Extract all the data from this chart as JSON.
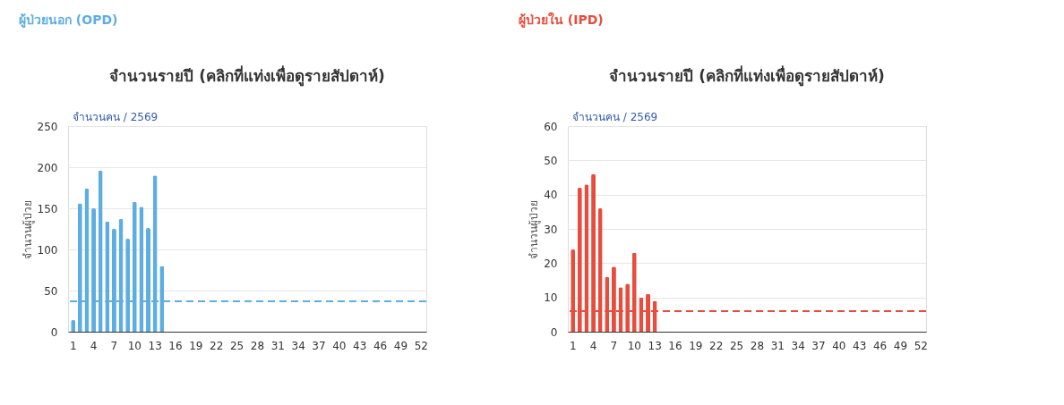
{
  "chart_data": [
    {
      "type": "bar",
      "title": "จำนวนรายปี (คลิกที่แท่งเพื่อดูรายสัปดาห์)",
      "ylabel": "จำนวนผู้ป่วย",
      "annotations": [
        "ผู้ป่วยนอก (OPD)",
        "จำนวนคน / 2569"
      ],
      "categories": [
        "1",
        null,
        null,
        "4",
        null,
        null,
        "7",
        null,
        null,
        "10",
        null,
        null,
        "13",
        null,
        null,
        "16",
        null,
        null,
        "19",
        null,
        null,
        "22",
        null,
        null,
        "25",
        null,
        null,
        "28",
        null,
        null,
        "31",
        null,
        null,
        "34",
        null,
        null,
        "37",
        null,
        null,
        "40",
        null,
        null,
        "43",
        null,
        null,
        "46",
        null,
        null,
        "49",
        null,
        null,
        "52"
      ],
      "series": [
        {
          "color": "#5dade2",
          "values": [
            14,
            156,
            174,
            150,
            196,
            134,
            125,
            137,
            113,
            158,
            152,
            126,
            190,
            80,
            null,
            null,
            null,
            null,
            null,
            null,
            null,
            null,
            null,
            null,
            null,
            null,
            null,
            null,
            null,
            null,
            null,
            null,
            null,
            null,
            null,
            null,
            null,
            null,
            null,
            null,
            null,
            null,
            null,
            null,
            null,
            null,
            null,
            null,
            null,
            null,
            null,
            null
          ]
        }
      ],
      "ylim": [
        0,
        250
      ],
      "yticks": [
        0,
        50,
        100,
        150,
        200,
        250
      ],
      "grid": "y",
      "ref_lines": [
        {
          "axis": "y",
          "value": 37,
          "color": "#5dade2",
          "line_style": "dashed"
        }
      ]
    },
    {
      "type": "bar",
      "title": "จำนวนรายปี (คลิกที่แท่งเพื่อดูรายสัปดาห์)",
      "ylabel": "จำนวนผู้ป่วย",
      "annotations": [
        "ผู้ป่วยใน (IPD)",
        "จำนวนคน / 2569"
      ],
      "categories": [
        "1",
        null,
        null,
        "4",
        null,
        null,
        "7",
        null,
        null,
        "10",
        null,
        null,
        "13",
        null,
        null,
        "16",
        null,
        null,
        "19",
        null,
        null,
        "22",
        null,
        null,
        "25",
        null,
        null,
        "28",
        null,
        null,
        "31",
        null,
        null,
        "34",
        null,
        null,
        "37",
        null,
        null,
        "40",
        null,
        null,
        "43",
        null,
        null,
        "46",
        null,
        null,
        "49",
        null,
        null,
        "52"
      ],
      "series": [
        {
          "color": "#e74c3c",
          "values": [
            24,
            42,
            43,
            46,
            36,
            16,
            19,
            13,
            14,
            23,
            10,
            11,
            9,
            null,
            null,
            null,
            null,
            null,
            null,
            null,
            null,
            null,
            null,
            null,
            null,
            null,
            null,
            null,
            null,
            null,
            null,
            null,
            null,
            null,
            null,
            null,
            null,
            null,
            null,
            null,
            null,
            null,
            null,
            null,
            null,
            null,
            null,
            null,
            null,
            null,
            null,
            null
          ]
        }
      ],
      "ylim": [
        0,
        60
      ],
      "yticks": [
        0,
        10,
        20,
        30,
        40,
        50,
        60
      ],
      "grid": "y",
      "ref_lines": [
        {
          "axis": "y",
          "value": 6,
          "color": "#e74c3c",
          "line_style": "dashed"
        }
      ]
    }
  ]
}
